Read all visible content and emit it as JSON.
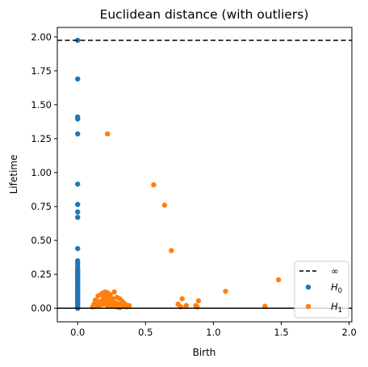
{
  "chart_data": {
    "type": "scatter",
    "title": "Euclidean distance (with outliers)",
    "xlabel": "Birth",
    "ylabel": "Lifetime",
    "xlim": [
      -0.15,
      2.02
    ],
    "ylim": [
      -0.1,
      2.07
    ],
    "xticks": [
      "0.0",
      "0.5",
      "1.0",
      "1.5",
      "2.0"
    ],
    "xtick_values": [
      0.0,
      0.5,
      1.0,
      1.5,
      2.0
    ],
    "yticks": [
      "0.00",
      "0.25",
      "0.50",
      "0.75",
      "1.00",
      "1.25",
      "1.50",
      "1.75",
      "2.00"
    ],
    "ytick_values": [
      0.0,
      0.25,
      0.5,
      0.75,
      1.0,
      1.25,
      1.5,
      1.75,
      2.0
    ],
    "grid": false,
    "legend_position": "bottom-right",
    "infinity_line": {
      "label": "∞",
      "y": 1.975,
      "color": "#000000",
      "style": "dashed"
    },
    "zero_line": {
      "y": 0.0,
      "color": "#000000",
      "style": "solid"
    },
    "series": [
      {
        "name": "H0",
        "label_base": "H",
        "label_sub": "0",
        "color": "#1f77b4",
        "points": [
          [
            0,
            1.975
          ],
          [
            0,
            1.69
          ],
          [
            0,
            1.41
          ],
          [
            0,
            1.395
          ],
          [
            0,
            1.285
          ],
          [
            0,
            0.915
          ],
          [
            0,
            0.765
          ],
          [
            0,
            0.71
          ],
          [
            0,
            0.67
          ],
          [
            0,
            0.44
          ],
          [
            0,
            0.35
          ],
          [
            0,
            0.33
          ],
          [
            0,
            0.31
          ],
          [
            0,
            0.29
          ],
          [
            0,
            0.28
          ],
          [
            0,
            0.27
          ],
          [
            0,
            0.26
          ],
          [
            0,
            0.25
          ],
          [
            0,
            0.24
          ],
          [
            0,
            0.23
          ],
          [
            0,
            0.22
          ],
          [
            0,
            0.21
          ],
          [
            0,
            0.2
          ],
          [
            0,
            0.19
          ],
          [
            0,
            0.18
          ],
          [
            0,
            0.17
          ],
          [
            0,
            0.16
          ],
          [
            0,
            0.15
          ],
          [
            0,
            0.14
          ],
          [
            0,
            0.13
          ],
          [
            0,
            0.12
          ],
          [
            0,
            0.11
          ],
          [
            0,
            0.1
          ],
          [
            0,
            0.09
          ],
          [
            0,
            0.08
          ],
          [
            0,
            0.07
          ],
          [
            0,
            0.06
          ],
          [
            0,
            0.05
          ],
          [
            0,
            0.04
          ],
          [
            0,
            0.03
          ],
          [
            0,
            0.02
          ],
          [
            0,
            0.01
          ],
          [
            0,
            0.0
          ]
        ]
      },
      {
        "name": "H1",
        "label_base": "H",
        "label_sub": "1",
        "color": "#ff7f0e",
        "points": [
          [
            0.22,
            1.285
          ],
          [
            0.56,
            0.91
          ],
          [
            0.64,
            0.76
          ],
          [
            0.69,
            0.425
          ],
          [
            1.09,
            0.125
          ],
          [
            1.48,
            0.21
          ],
          [
            1.38,
            0.015
          ],
          [
            0.77,
            0.07
          ],
          [
            0.89,
            0.055
          ],
          [
            0.74,
            0.03
          ],
          [
            0.76,
            0.01
          ],
          [
            0.8,
            0.02
          ],
          [
            0.87,
            0.02
          ],
          [
            0.88,
            0.01
          ],
          [
            0.13,
            0.06
          ],
          [
            0.15,
            0.09
          ],
          [
            0.17,
            0.1
          ],
          [
            0.18,
            0.11
          ],
          [
            0.2,
            0.12
          ],
          [
            0.22,
            0.115
          ],
          [
            0.24,
            0.1
          ],
          [
            0.27,
            0.12
          ],
          [
            0.29,
            0.08
          ],
          [
            0.31,
            0.07
          ],
          [
            0.33,
            0.05
          ],
          [
            0.35,
            0.03
          ],
          [
            0.38,
            0.02
          ],
          [
            0.12,
            0.03
          ],
          [
            0.14,
            0.04
          ],
          [
            0.16,
            0.05
          ],
          [
            0.19,
            0.07
          ],
          [
            0.21,
            0.06
          ],
          [
            0.23,
            0.08
          ],
          [
            0.25,
            0.05
          ],
          [
            0.28,
            0.04
          ],
          [
            0.3,
            0.03
          ],
          [
            0.32,
            0.02
          ],
          [
            0.34,
            0.015
          ],
          [
            0.36,
            0.01
          ],
          [
            0.11,
            0.01
          ],
          [
            0.13,
            0.015
          ],
          [
            0.15,
            0.02
          ],
          [
            0.17,
            0.025
          ],
          [
            0.19,
            0.03
          ],
          [
            0.21,
            0.035
          ],
          [
            0.23,
            0.04
          ],
          [
            0.25,
            0.02
          ],
          [
            0.27,
            0.015
          ],
          [
            0.29,
            0.01
          ],
          [
            0.31,
            0.005
          ],
          [
            0.2,
            0.09
          ],
          [
            0.26,
            0.07
          ],
          [
            0.18,
            0.04
          ],
          [
            0.22,
            0.02
          ]
        ]
      }
    ]
  }
}
